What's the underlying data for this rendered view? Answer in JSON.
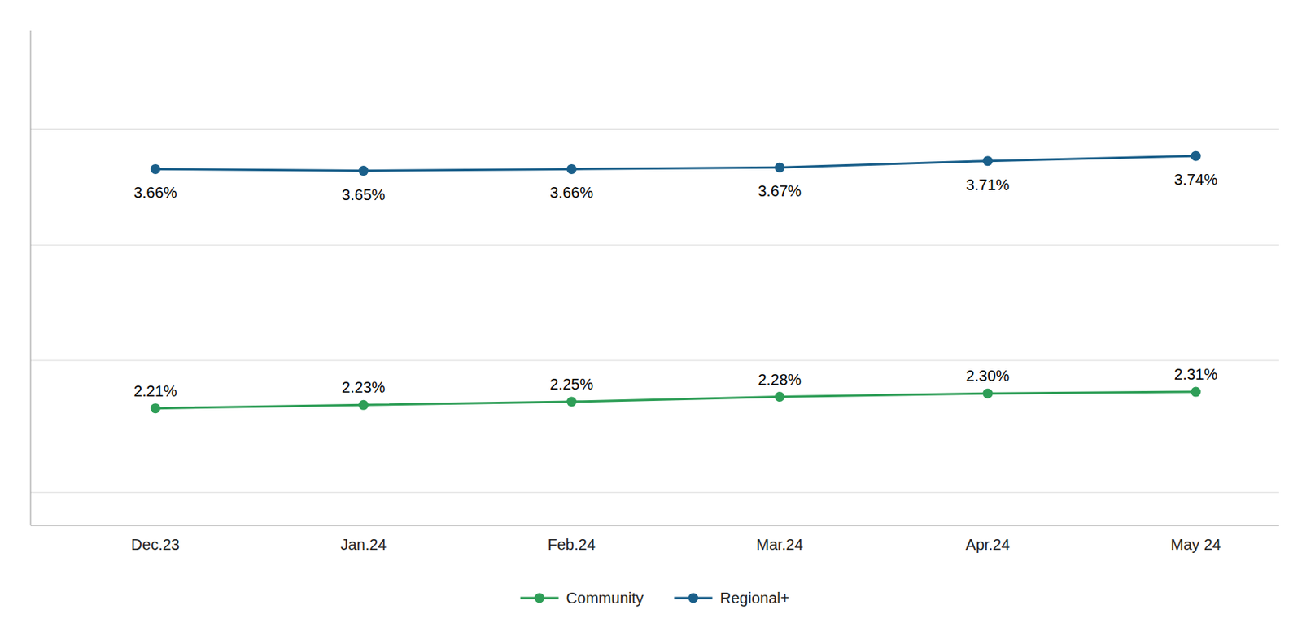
{
  "chart_data": {
    "type": "line",
    "categories": [
      "Dec.23",
      "Jan.24",
      "Feb.24",
      "Mar.24",
      "Apr.24",
      "May 24"
    ],
    "series": [
      {
        "name": "Community",
        "color": "#2e9e57",
        "marker": "circle",
        "line_style": "solid",
        "values": [
          2.21,
          2.23,
          2.25,
          2.28,
          2.3,
          2.31
        ],
        "value_labels": [
          "2.21%",
          "2.23%",
          "2.25%",
          "2.28%",
          "2.30%",
          "2.31%"
        ]
      },
      {
        "name": "Regional+",
        "color": "#1a5f8a",
        "marker": "circle",
        "line_style": "solid",
        "values": [
          3.66,
          3.65,
          3.66,
          3.67,
          3.71,
          3.74
        ],
        "value_labels": [
          "3.66%",
          "3.65%",
          "3.66%",
          "3.67%",
          "3.71%",
          "3.74%"
        ]
      }
    ],
    "ylim": [
      1.5,
      4.5
    ],
    "yticks": [
      1.7,
      2.5,
      3.2,
      3.9
    ],
    "grid": true,
    "data_labels": true,
    "tick_labels": "x",
    "legend": "bottom"
  }
}
